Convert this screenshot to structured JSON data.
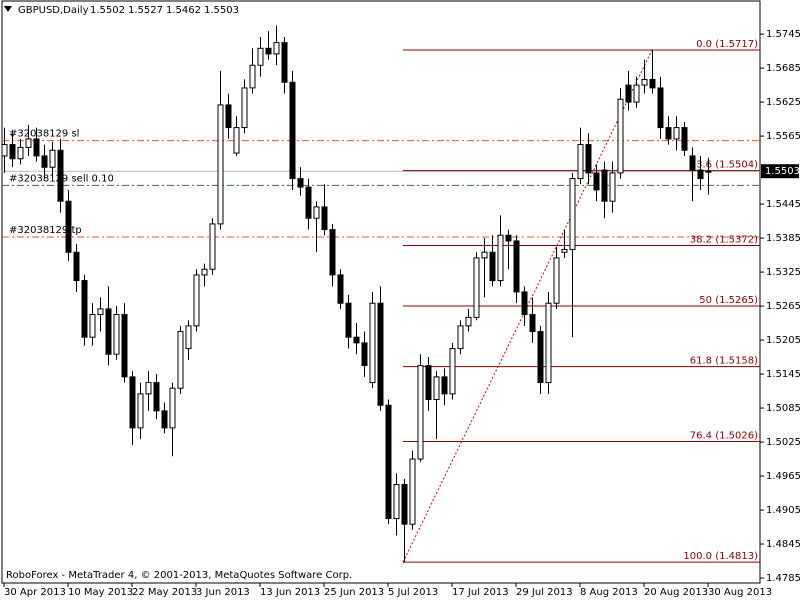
{
  "chart_data": {
    "type": "candlestick",
    "title": "GBPUSD,Daily",
    "header_ohlc": [
      1.5502,
      1.5527,
      1.5462,
      1.5503
    ],
    "footer": "RoboForex - MetaTrader 4, © 2001-2013, MetaQuotes Software Corp.",
    "categories": [
      "30 Apr 2013",
      null,
      null,
      null,
      null,
      null,
      null,
      null,
      "10 May 2013",
      null,
      null,
      null,
      null,
      null,
      null,
      null,
      "22 May 2013",
      null,
      null,
      null,
      null,
      null,
      null,
      null,
      "3 Jun 2013",
      null,
      null,
      null,
      null,
      null,
      null,
      null,
      "13 Jun 2013",
      null,
      null,
      null,
      null,
      null,
      null,
      null,
      "25 Jun 2013",
      null,
      null,
      null,
      null,
      null,
      null,
      null,
      "5 Jul 2013",
      null,
      null,
      null,
      null,
      null,
      null,
      null,
      "17 Jul 2013",
      null,
      null,
      null,
      null,
      null,
      null,
      null,
      "29 Jul 2013",
      null,
      null,
      null,
      null,
      null,
      null,
      null,
      "8 Aug 2013",
      null,
      null,
      null,
      null,
      null,
      null,
      null,
      "20 Aug 2013",
      null,
      null,
      null,
      null,
      null,
      null,
      null,
      "30 Aug 2013"
    ],
    "open": [
      1.553,
      1.555,
      1.5525,
      1.5545,
      1.556,
      1.553,
      1.551,
      1.554,
      1.545,
      1.536,
      1.531,
      1.521,
      1.525,
      1.526,
      1.518,
      1.525,
      1.514,
      1.505,
      1.511,
      1.513,
      1.508,
      1.505,
      1.512,
      1.519,
      1.523,
      1.532,
      1.533,
      1.541,
      1.562,
      1.5535,
      1.558,
      1.565,
      1.569,
      1.572,
      1.571,
      1.573,
      1.566,
      1.549,
      1.5475,
      1.542,
      1.544,
      1.54,
      1.532,
      1.527,
      1.521,
      1.52,
      1.513,
      1.527,
      1.509,
      1.489,
      1.495,
      1.488,
      1.4995,
      1.516,
      1.51,
      1.514,
      1.511,
      1.519,
      1.523,
      1.5245,
      1.535,
      1.536,
      1.531,
      1.539,
      1.538,
      1.529,
      1.525,
      1.522,
      1.513,
      1.527,
      1.536,
      1.5365,
      1.549,
      1.555,
      1.55,
      1.5505,
      1.545,
      1.55,
      1.5655,
      1.5625,
      1.5655,
      1.5665,
      1.565,
      1.558,
      1.556,
      1.558,
      1.553,
      1.5505,
      1.5502
    ],
    "high": [
      1.558,
      1.5575,
      1.556,
      1.5585,
      1.558,
      1.555,
      1.5555,
      1.556,
      1.547,
      1.5375,
      1.532,
      1.527,
      1.528,
      1.53,
      1.5265,
      1.527,
      1.515,
      1.513,
      1.515,
      1.5145,
      1.5095,
      1.513,
      1.523,
      1.524,
      1.533,
      1.534,
      1.542,
      1.568,
      1.564,
      1.56,
      1.5665,
      1.572,
      1.574,
      1.575,
      1.576,
      1.574,
      1.568,
      1.551,
      1.549,
      1.545,
      1.548,
      1.541,
      1.533,
      1.5285,
      1.5235,
      1.522,
      1.529,
      1.53,
      1.51,
      1.497,
      1.496,
      1.501,
      1.518,
      1.5175,
      1.515,
      1.5155,
      1.52,
      1.524,
      1.526,
      1.536,
      1.5385,
      1.539,
      1.5425,
      1.54,
      1.539,
      1.53,
      1.528,
      1.523,
      1.529,
      1.537,
      1.54,
      1.55,
      1.558,
      1.557,
      1.5515,
      1.552,
      1.552,
      1.565,
      1.568,
      1.567,
      1.57,
      1.5717,
      1.567,
      1.56,
      1.56,
      1.559,
      1.5545,
      1.553,
      1.5527
    ],
    "low": [
      1.55,
      1.551,
      1.5515,
      1.553,
      1.552,
      1.549,
      1.5495,
      1.543,
      1.5345,
      1.529,
      1.5195,
      1.5195,
      1.522,
      1.516,
      1.517,
      1.513,
      1.502,
      1.503,
      1.508,
      1.5065,
      1.504,
      1.5,
      1.511,
      1.517,
      1.522,
      1.53,
      1.532,
      1.54,
      1.556,
      1.553,
      1.557,
      1.564,
      1.567,
      1.57,
      1.569,
      1.564,
      1.547,
      1.546,
      1.54,
      1.536,
      1.539,
      1.53,
      1.526,
      1.519,
      1.518,
      1.514,
      1.512,
      1.508,
      1.488,
      1.486,
      1.4813,
      1.487,
      1.499,
      1.508,
      1.503,
      1.509,
      1.51,
      1.518,
      1.522,
      1.524,
      1.528,
      1.53,
      1.53,
      1.533,
      1.527,
      1.523,
      1.52,
      1.511,
      1.511,
      1.526,
      1.535,
      1.521,
      1.548,
      1.548,
      1.545,
      1.542,
      1.543,
      1.549,
      1.561,
      1.5615,
      1.564,
      1.564,
      1.556,
      1.555,
      1.554,
      1.553,
      1.545,
      1.547,
      1.5462
    ],
    "close": [
      1.555,
      1.5525,
      1.5545,
      1.556,
      1.553,
      1.551,
      1.554,
      1.545,
      1.536,
      1.531,
      1.521,
      1.525,
      1.526,
      1.518,
      1.525,
      1.514,
      1.505,
      1.511,
      1.513,
      1.508,
      1.505,
      1.512,
      1.522,
      1.523,
      1.532,
      1.533,
      1.541,
      1.562,
      1.558,
      1.558,
      1.565,
      1.569,
      1.572,
      1.571,
      1.573,
      1.566,
      1.549,
      1.5475,
      1.542,
      1.544,
      1.54,
      1.532,
      1.527,
      1.521,
      1.52,
      1.516,
      1.527,
      1.509,
      1.489,
      1.495,
      1.488,
      1.4995,
      1.516,
      1.51,
      1.514,
      1.511,
      1.519,
      1.523,
      1.5245,
      1.535,
      1.536,
      1.531,
      1.539,
      1.538,
      1.529,
      1.525,
      1.522,
      1.513,
      1.527,
      1.535,
      1.5365,
      1.549,
      1.555,
      1.55,
      1.547,
      1.545,
      1.55,
      1.563,
      1.5625,
      1.5655,
      1.5665,
      1.565,
      1.558,
      1.556,
      1.558,
      1.554,
      1.5505,
      1.549,
      1.5503
    ],
    "up_color": "#ffffff",
    "down_color": "#000000",
    "ylim": [
      1.47762,
      1.58052
    ],
    "yticks": [
      1.5745,
      1.5685,
      1.5625,
      1.5565,
      1.5445,
      1.5385,
      1.5325,
      1.5265,
      1.5205,
      1.5145,
      1.5085,
      1.5025,
      1.4965,
      1.4905,
      1.4845,
      1.4785
    ],
    "last_price": 1.5503,
    "fib_color": "#8b0000",
    "fib_levels": [
      {
        "value": 1.5717,
        "label": "0.0 (1.5717)"
      },
      {
        "value": 1.5504,
        "label": "23.6 (1.5504)"
      },
      {
        "value": 1.5372,
        "label": "38.2 (1.5372)"
      },
      {
        "value": 1.5265,
        "label": "50 (1.5265)"
      },
      {
        "value": 1.5158,
        "label": "61.8 (1.5158)"
      },
      {
        "value": 1.5026,
        "label": "76.4 (1.5026)"
      },
      {
        "value": 1.4813,
        "label": "100.0 (1.4813)"
      }
    ],
    "orders": [
      {
        "label": "#32038129 sl",
        "price": 1.5557,
        "color": "#e8502a"
      },
      {
        "label": "#32038129 sell 0.10",
        "price": 1.5478,
        "color": "#2a7a2a"
      },
      {
        "label": "#32038129 tp",
        "price": 1.5387,
        "color": "#e8502a"
      }
    ]
  }
}
